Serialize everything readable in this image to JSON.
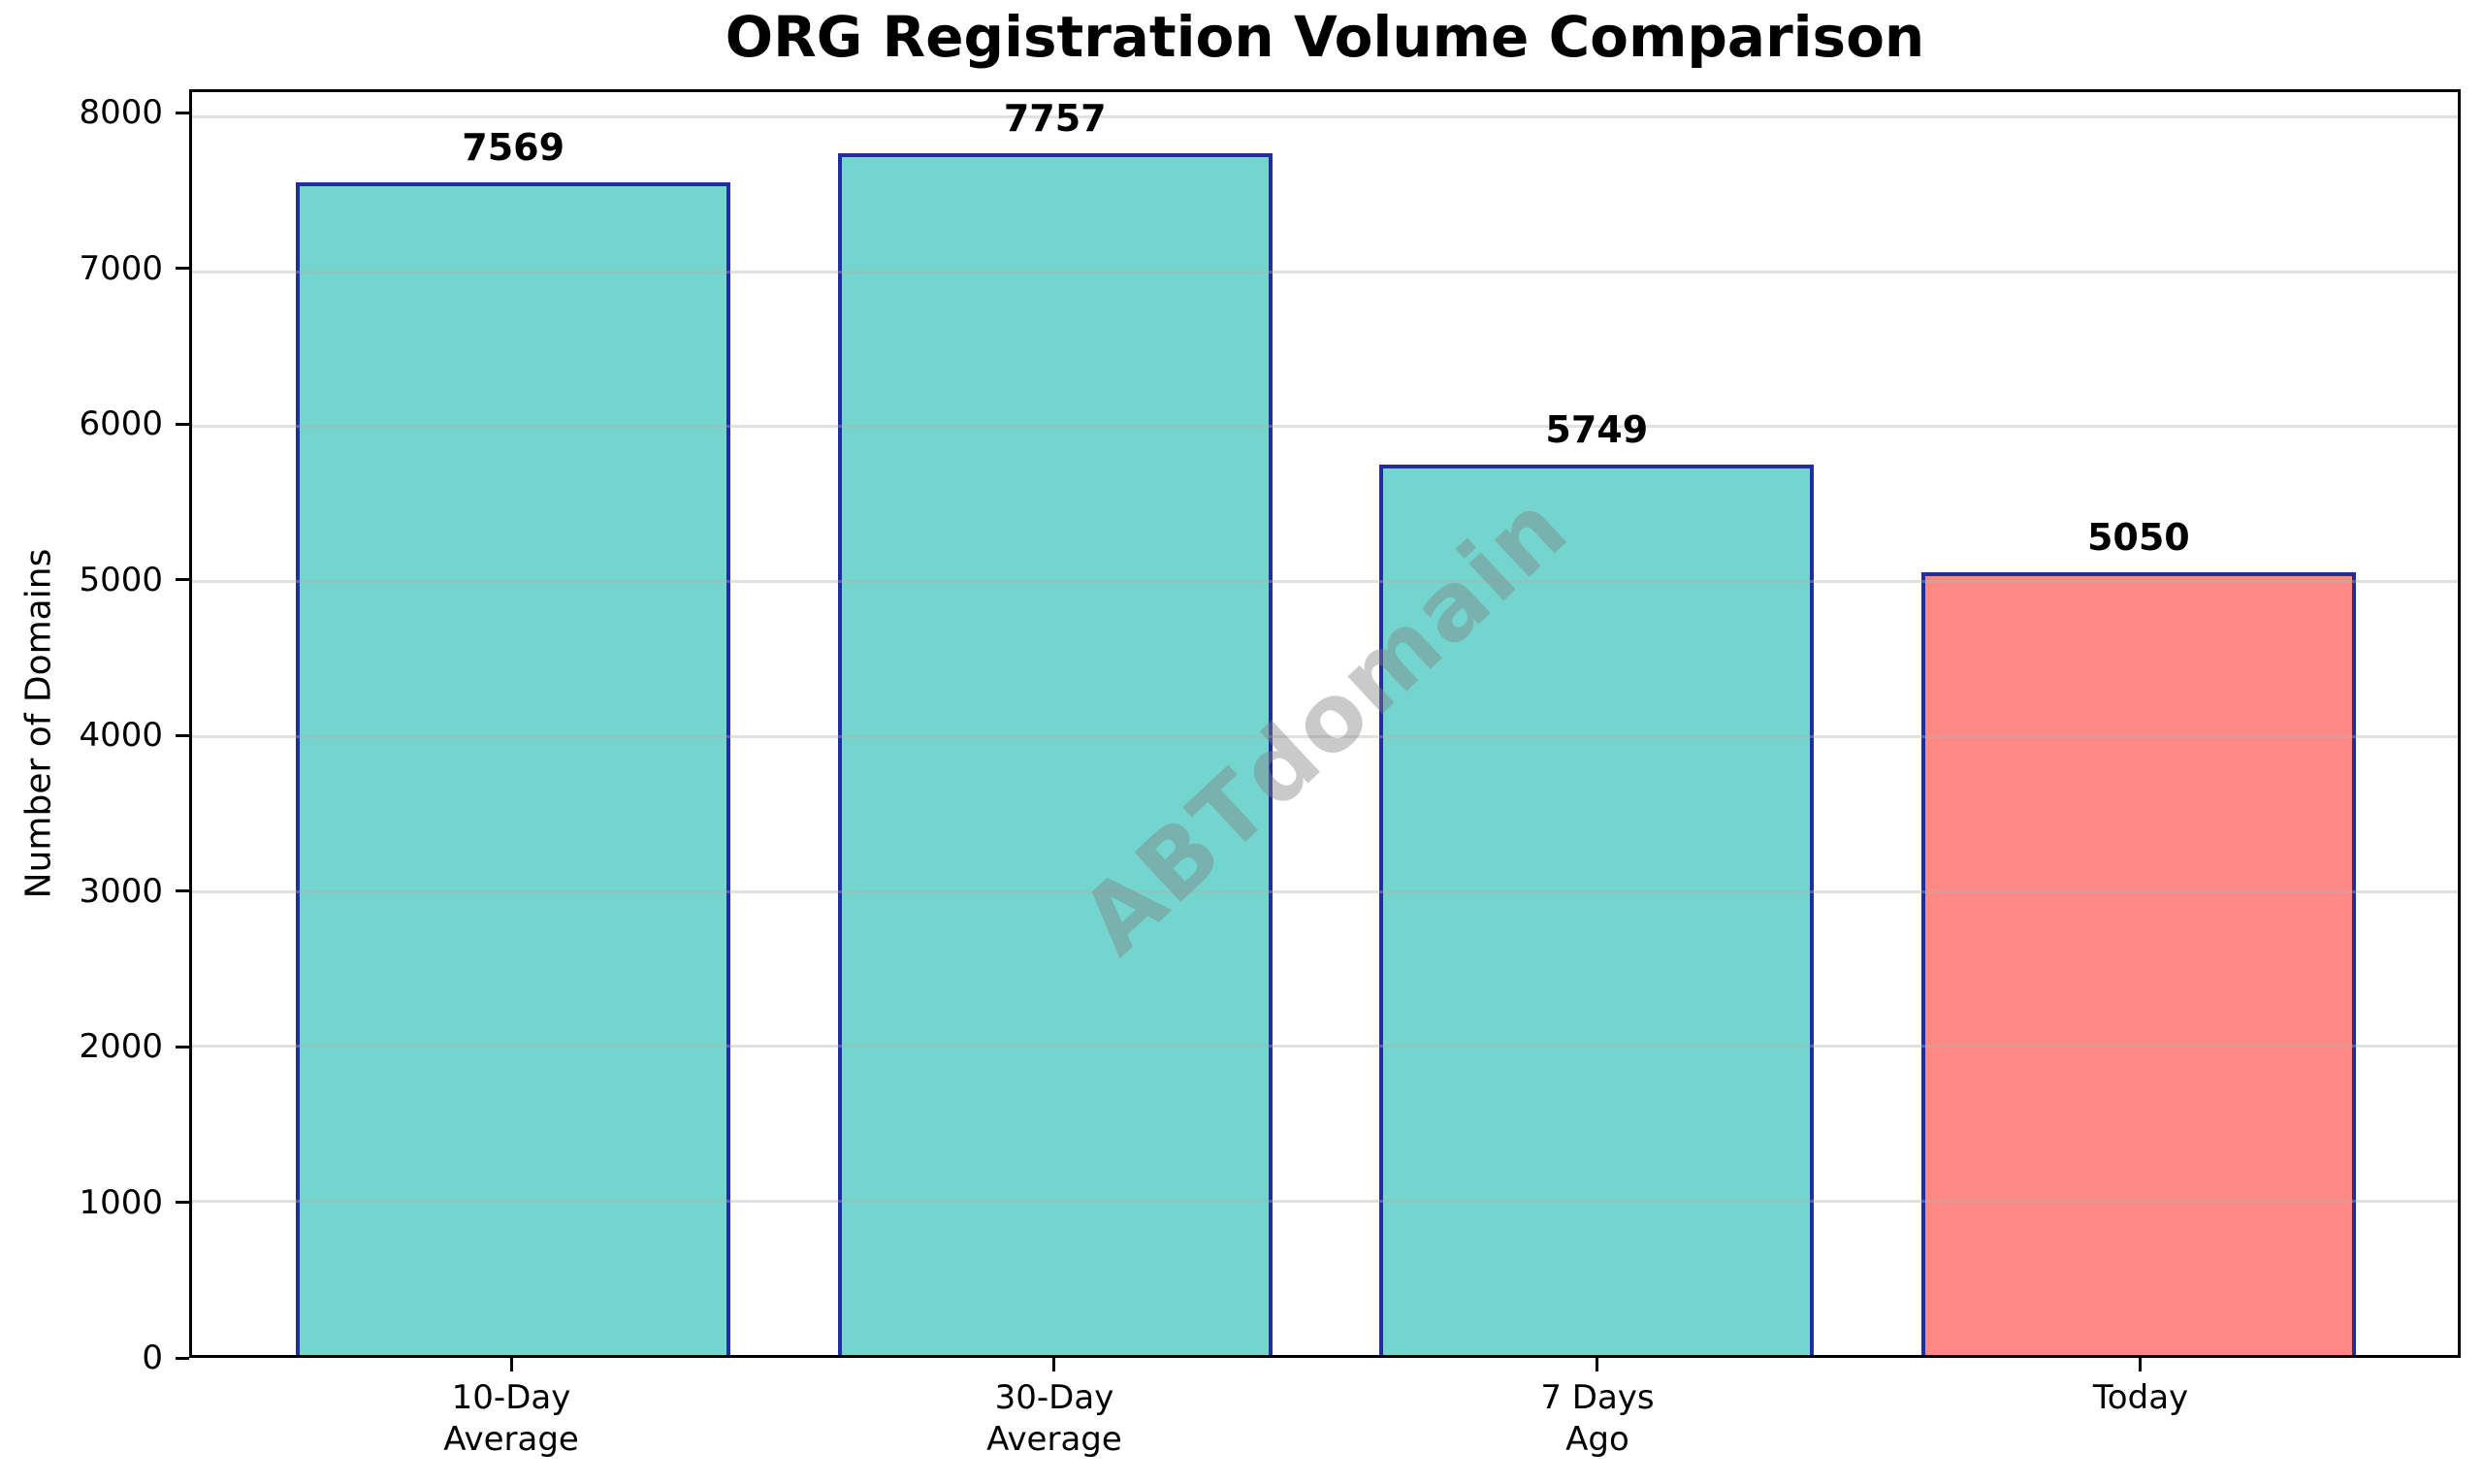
{
  "chart_data": {
    "type": "bar",
    "title": "ORG Registration Volume Comparison",
    "ylabel": "Number of Domains",
    "xlabel": "",
    "categories": [
      "10-Day\nAverage",
      "30-Day\nAverage",
      "7 Days\nAgo",
      "Today"
    ],
    "values": [
      7569,
      7757,
      5749,
      5050
    ],
    "data_labels": [
      "7569",
      "7757",
      "5749",
      "5050"
    ],
    "bar_colors": [
      "#73D5CE",
      "#73D5CE",
      "#73D5CE",
      "#FC8985"
    ],
    "bar_edge_color": "#232D9B",
    "yticks": [
      0,
      1000,
      2000,
      3000,
      4000,
      5000,
      6000,
      7000,
      8000
    ],
    "ylim": [
      0,
      8150
    ],
    "grid": true,
    "grid_color": "#B0B0B0",
    "legend_position": "none",
    "watermark": "ABTdomain",
    "background_color": "#FFFFFF",
    "text_color": "#000000"
  }
}
